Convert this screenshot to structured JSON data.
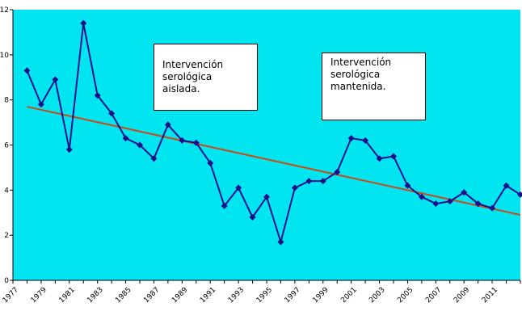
{
  "chart_data": {
    "type": "line",
    "title": "",
    "xlabel": "",
    "ylabel": "",
    "ylim": [
      0,
      12
    ],
    "xlim": [
      1977,
      2013
    ],
    "y_ticks": [
      "0",
      "2",
      "4",
      "6",
      "8",
      "10",
      "12"
    ],
    "x_ticks": [
      "1977",
      "1979",
      "1981",
      "1983",
      "1985",
      "1987",
      "1989",
      "1991",
      "1993",
      "1995",
      "1997",
      "1999",
      "2001",
      "2003",
      "2005",
      "2007",
      "2009",
      "2011"
    ],
    "grid": false,
    "legend": "none",
    "colors": {
      "plot_background": "#00e5f0",
      "series": "#1a0f8a",
      "trend": "#c84b1a"
    },
    "series": [
      {
        "x": [
          1978,
          1979,
          1980,
          1981,
          1982,
          1983,
          1984,
          1985,
          1986,
          1987,
          1988,
          1989,
          1990,
          1991,
          1992,
          1993,
          1994,
          1995,
          1996,
          1997,
          1998,
          1999,
          2000,
          2001,
          2002,
          2003,
          2004,
          2005,
          2006,
          2007,
          2008,
          2009,
          2010,
          2011,
          2012,
          2013
        ],
        "values": [
          9.3,
          7.8,
          8.9,
          5.8,
          11.4,
          8.2,
          7.4,
          6.3,
          6.0,
          5.4,
          6.9,
          6.2,
          6.1,
          5.2,
          3.3,
          4.1,
          2.8,
          3.7,
          1.7,
          4.1,
          4.4,
          4.4,
          4.8,
          6.3,
          6.2,
          5.4,
          5.5,
          4.2,
          3.7,
          3.4,
          3.5,
          3.9,
          3.4,
          3.2,
          4.2,
          3.8
        ]
      }
    ],
    "trendline": {
      "x": [
        1978,
        2013
      ],
      "values": [
        7.7,
        2.9
      ]
    },
    "annotations": [
      {
        "text": "Intervención\nserológica\naislada."
      },
      {
        "text": "Intervención\nserológica\nmantenida."
      }
    ]
  }
}
